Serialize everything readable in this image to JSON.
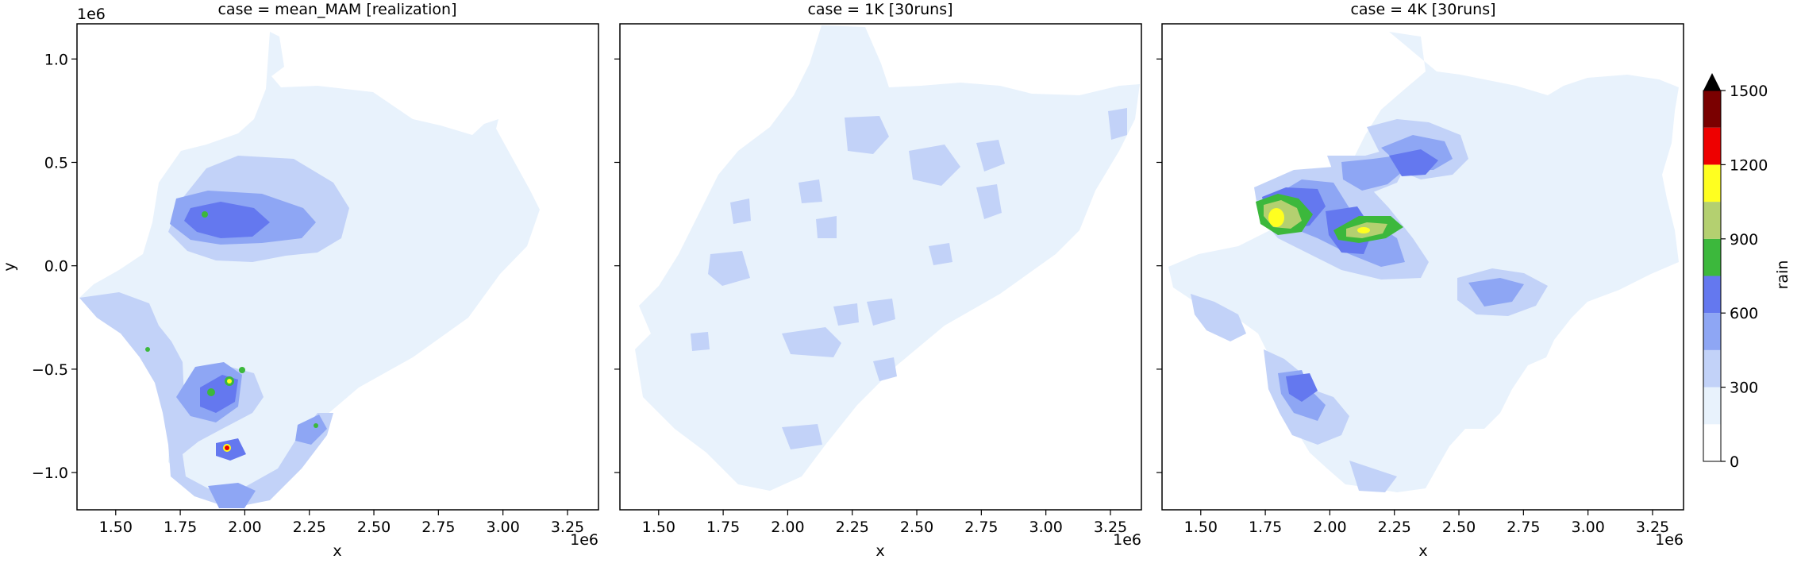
{
  "chart_data": {
    "type": "heatmap",
    "panels": [
      {
        "title": "case = mean_MAM [realization]"
      },
      {
        "title": "case = 1K [30runs]"
      },
      {
        "title": "case = 4K [30runs]"
      }
    ],
    "xlabel": "x",
    "ylabel": "y",
    "x_ticks": [
      1.5,
      1.75,
      2.0,
      2.25,
      2.5,
      2.75,
      3.0,
      3.25
    ],
    "x_tick_labels": [
      "1.50",
      "1.75",
      "2.00",
      "2.25",
      "2.50",
      "2.75",
      "3.00",
      "3.25"
    ],
    "x_offset_label": "1e6",
    "xlim": [
      1.35,
      3.37
    ],
    "y_ticks": [
      1.0,
      0.5,
      0.0,
      -0.5,
      -1.0
    ],
    "y_tick_labels": [
      "1.0",
      "0.5",
      "0.0",
      "−0.5",
      "−1.0"
    ],
    "y_offset_label": "1e6",
    "ylim": [
      -1.18,
      1.17
    ],
    "colorbar": {
      "label": "rain",
      "ticks": [
        0,
        300,
        600,
        900,
        1200,
        1500
      ],
      "tick_labels": [
        "0",
        "300",
        "600",
        "900",
        "1200",
        "1500"
      ],
      "bounds": [
        0,
        150,
        300,
        450,
        600,
        750,
        900,
        1050,
        1200,
        1350,
        1500
      ],
      "colors": [
        "#ffffff",
        "#e8f2fc",
        "#c2d2f8",
        "#8ea6f4",
        "#6478ef",
        "#3cb83c",
        "#b4d070",
        "#ffff20",
        "#ee0000",
        "#7a0000"
      ],
      "extend": "max",
      "extend_color": "#000000"
    }
  }
}
